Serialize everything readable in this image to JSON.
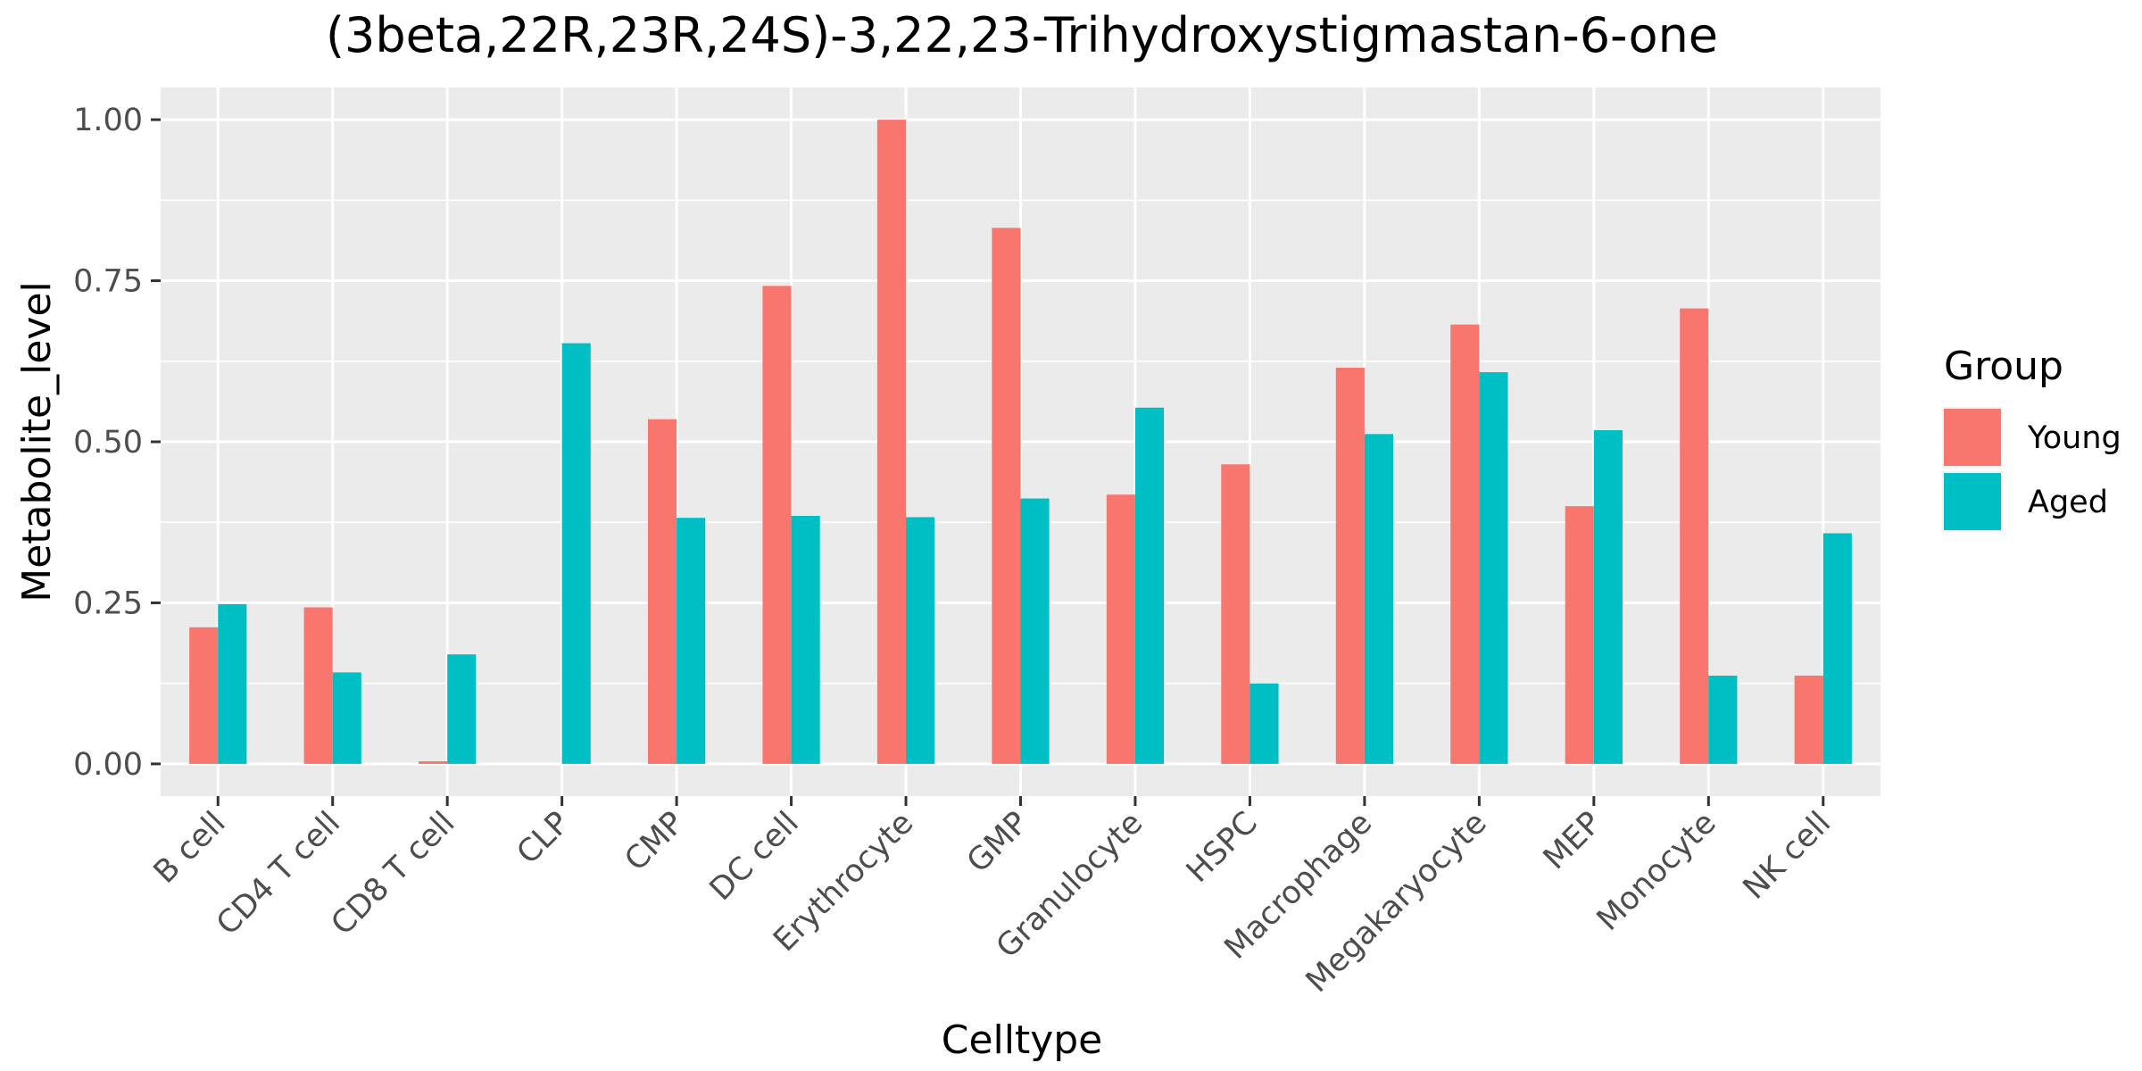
{
  "chart_data": {
    "type": "bar",
    "title": "(3beta,22R,23R,24S)-3,22,23-Trihydroxystigmastan-6-one",
    "xlabel": "Celltype",
    "ylabel": "Metabolite_level",
    "ylim": [
      -0.05,
      1.05
    ],
    "yticks": [
      0.0,
      0.25,
      0.5,
      0.75,
      1.0
    ],
    "ytick_labels": [
      "0.00",
      "0.25",
      "0.50",
      "0.75",
      "1.00"
    ],
    "grid": true,
    "legend": {
      "title": "Group",
      "position": "right"
    },
    "categories": [
      "B cell",
      "CD4 T cell",
      "CD8 T cell",
      "CLP",
      "CMP",
      "DC cell",
      "Erythrocyte",
      "GMP",
      "Granulocyte",
      "HSPC",
      "Macrophage",
      "Megakaryocyte",
      "MEP",
      "Monocyte",
      "NK cell"
    ],
    "series": [
      {
        "name": "Young",
        "color": "#F8766D",
        "values": [
          0.212,
          0.243,
          0.004,
          0.0,
          0.535,
          0.742,
          1.0,
          0.832,
          0.418,
          0.465,
          0.615,
          0.682,
          0.4,
          0.707,
          0.137
        ]
      },
      {
        "name": "Aged",
        "color": "#00BFC4",
        "values": [
          0.248,
          0.142,
          0.17,
          0.653,
          0.382,
          0.385,
          0.383,
          0.412,
          0.553,
          0.125,
          0.512,
          0.608,
          0.518,
          0.137,
          0.358
        ]
      }
    ]
  }
}
